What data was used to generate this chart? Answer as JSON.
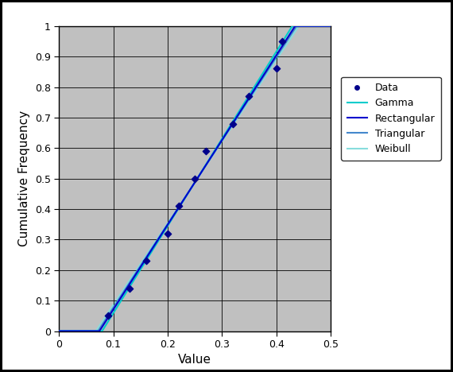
{
  "data_x": [
    0.09,
    0.13,
    0.16,
    0.2,
    0.22,
    0.25,
    0.27,
    0.32,
    0.35,
    0.4,
    0.41
  ],
  "data_y": [
    0.05,
    0.14,
    0.23,
    0.32,
    0.41,
    0.5,
    0.59,
    0.68,
    0.77,
    0.86,
    0.95
  ],
  "xlim": [
    0.0,
    0.5
  ],
  "ylim": [
    0.0,
    1.0
  ],
  "xticks": [
    0.0,
    0.1,
    0.2,
    0.3,
    0.4,
    0.5
  ],
  "yticks": [
    0.0,
    0.1,
    0.2,
    0.3,
    0.4,
    0.5,
    0.6,
    0.7,
    0.8,
    0.9,
    1.0
  ],
  "xlabel": "Value",
  "ylabel": "Cumulative Frequency",
  "bg_color": "#c0c0c0",
  "data_color": "#00008B",
  "gamma_color": "#00CCCC",
  "rectangular_color": "#0000CD",
  "triangular_color": "#4488CC",
  "weibull_color": "#88DDDD",
  "outer_bg": "#ffffff",
  "border_color": "#000000"
}
